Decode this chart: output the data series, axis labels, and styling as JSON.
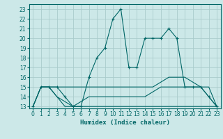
{
  "xlabel": "Humidex (Indice chaleur)",
  "bg_color": "#cce8e8",
  "grid_color": "#aacccc",
  "line_color": "#006666",
  "xlim": [
    -0.5,
    23.5
  ],
  "ylim": [
    12.8,
    23.5
  ],
  "yticks": [
    13,
    14,
    15,
    16,
    17,
    18,
    19,
    20,
    21,
    22,
    23
  ],
  "xticks": [
    0,
    1,
    2,
    3,
    4,
    5,
    6,
    7,
    8,
    9,
    10,
    11,
    12,
    13,
    14,
    15,
    16,
    17,
    18,
    19,
    20,
    21,
    22,
    23
  ],
  "series": [
    {
      "x": [
        0,
        1,
        2,
        3,
        4,
        5,
        6,
        7,
        8,
        9,
        10,
        11,
        12,
        13,
        14,
        15,
        16,
        17,
        18,
        19,
        20,
        21,
        22,
        23
      ],
      "y": [
        13,
        15,
        15,
        15,
        14,
        13,
        13,
        16,
        18,
        19,
        22,
        23,
        17,
        17,
        20,
        20,
        20,
        21,
        20,
        15,
        15,
        15,
        14,
        13
      ],
      "marker": "+"
    },
    {
      "x": [
        0,
        1,
        2,
        3,
        4,
        5,
        6,
        7,
        8,
        9,
        10,
        11,
        12,
        13,
        14,
        15,
        16,
        17,
        18,
        19,
        20,
        21,
        22,
        23
      ],
      "y": [
        13,
        15,
        15,
        15,
        15,
        15,
        15,
        15,
        15,
        15,
        15,
        15,
        15,
        15,
        15,
        15,
        15.5,
        16,
        16,
        16,
        15.5,
        15,
        15,
        13
      ],
      "marker": null
    },
    {
      "x": [
        0,
        1,
        2,
        3,
        4,
        5,
        6,
        7,
        8,
        9,
        10,
        11,
        12,
        13,
        14,
        15,
        16,
        17,
        18,
        19,
        20,
        21,
        22,
        23
      ],
      "y": [
        13,
        15,
        15,
        14,
        13,
        13,
        13,
        13,
        13,
        13,
        13,
        13,
        13,
        13,
        13,
        13,
        13,
        13,
        13,
        13,
        13,
        13,
        13,
        13
      ],
      "marker": null
    },
    {
      "x": [
        1,
        2,
        3,
        4,
        5,
        6,
        7,
        8,
        9,
        10,
        11,
        12,
        13,
        14,
        15,
        16,
        17,
        18,
        19,
        20,
        21,
        22,
        23
      ],
      "y": [
        15,
        15,
        14,
        13.5,
        13,
        13.5,
        14,
        14,
        14,
        14,
        14,
        14,
        14,
        14,
        14.5,
        15,
        15,
        15,
        15,
        15,
        15,
        14,
        13
      ],
      "marker": null
    }
  ]
}
